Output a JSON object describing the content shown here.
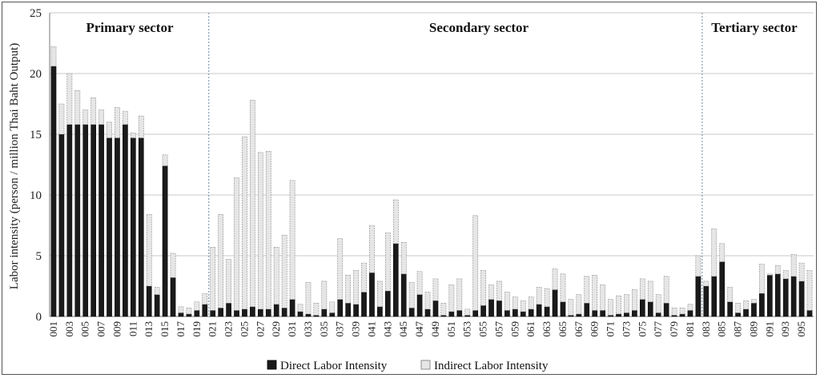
{
  "chart_data": {
    "type": "bar",
    "stacked": true,
    "title": "",
    "xlabel": "",
    "ylabel": "Labor intensity (person / million Thai Baht Output)",
    "ylim": [
      0,
      25
    ],
    "yticks": [
      0,
      5,
      10,
      15,
      20,
      25
    ],
    "grid": true,
    "legend_position": "bottom",
    "categories": [
      "001",
      "002",
      "003",
      "004",
      "005",
      "006",
      "007",
      "008",
      "009",
      "010",
      "011",
      "012",
      "013",
      "014",
      "015",
      "016",
      "017",
      "018",
      "019",
      "020",
      "021",
      "022",
      "023",
      "024",
      "025",
      "026",
      "027",
      "028",
      "029",
      "030",
      "031",
      "032",
      "033",
      "034",
      "035",
      "036",
      "037",
      "038",
      "039",
      "040",
      "041",
      "042",
      "043",
      "044",
      "045",
      "046",
      "047",
      "048",
      "049",
      "050",
      "051",
      "052",
      "053",
      "054",
      "055",
      "056",
      "057",
      "058",
      "059",
      "060",
      "061",
      "062",
      "063",
      "064",
      "065",
      "066",
      "067",
      "068",
      "069",
      "070",
      "071",
      "072",
      "073",
      "074",
      "075",
      "076",
      "077",
      "078",
      "079",
      "080",
      "081",
      "082",
      "083",
      "084",
      "085",
      "086",
      "087",
      "088",
      "089",
      "090",
      "091",
      "092",
      "093",
      "094",
      "095",
      "096"
    ],
    "series": [
      {
        "name": "Direct Labor Intensity",
        "color": "#1a1a1a",
        "values": [
          20.6,
          15.0,
          15.8,
          15.8,
          15.8,
          15.8,
          15.8,
          14.7,
          14.7,
          15.8,
          14.7,
          14.7,
          2.5,
          1.8,
          12.4,
          3.2,
          0.3,
          0.2,
          0.5,
          1.0,
          0.5,
          0.7,
          1.1,
          0.5,
          0.6,
          0.8,
          0.6,
          0.6,
          1.0,
          0.7,
          1.4,
          0.4,
          0.2,
          0.1,
          0.6,
          0.3,
          1.4,
          1.1,
          1.0,
          2.0,
          3.6,
          0.8,
          2.1,
          6.0,
          3.5,
          0.7,
          1.8,
          0.6,
          1.3,
          0.1,
          0.4,
          0.5,
          0.1,
          0.5,
          0.9,
          1.4,
          1.3,
          0.5,
          0.6,
          0.4,
          0.6,
          1.0,
          0.8,
          2.2,
          1.2,
          0.1,
          0.2,
          1.1,
          0.5,
          0.5,
          0.1,
          0.2,
          0.3,
          0.5,
          1.4,
          1.2,
          0.3,
          1.1,
          0.1,
          0.2,
          0.5,
          3.3,
          2.5,
          3.3,
          4.5,
          1.2,
          0.3,
          0.6,
          1.1,
          1.9,
          3.4,
          3.5,
          3.1,
          3.3,
          2.9,
          0.5
        ]
      },
      {
        "name": "Indirect Labor Intensity",
        "color": "#e6e6e6",
        "values": [
          1.6,
          2.5,
          4.2,
          2.8,
          1.2,
          2.2,
          1.2,
          1.3,
          2.5,
          1.1,
          0.4,
          1.8,
          5.9,
          0.6,
          0.9,
          2.0,
          0.5,
          0.5,
          0.7,
          0.9,
          5.2,
          7.7,
          3.6,
          10.9,
          14.2,
          17.0,
          12.9,
          13.0,
          4.7,
          6.0,
          9.8,
          0.6,
          2.6,
          1.0,
          2.3,
          0.9,
          5.0,
          2.3,
          2.8,
          2.4,
          3.9,
          2.1,
          4.8,
          3.6,
          2.6,
          2.1,
          1.9,
          1.4,
          1.8,
          1.0,
          2.2,
          2.6,
          0.5,
          7.8,
          2.9,
          1.2,
          1.6,
          1.5,
          1.0,
          0.9,
          1.0,
          1.4,
          1.5,
          1.7,
          2.3,
          1.3,
          1.6,
          2.2,
          2.9,
          2.1,
          1.3,
          1.5,
          1.5,
          1.7,
          1.7,
          1.7,
          1.5,
          2.2,
          0.6,
          0.5,
          0.5,
          1.7,
          0.4,
          3.9,
          1.5,
          1.2,
          0.8,
          0.7,
          0.3,
          2.4,
          0.1,
          0.7,
          0.7,
          1.8,
          1.5,
          3.3
        ]
      }
    ],
    "sectors": [
      {
        "label": "Primary sector"
      },
      {
        "label": "Secondary sector"
      },
      {
        "label": "Tertiary sector"
      }
    ]
  }
}
